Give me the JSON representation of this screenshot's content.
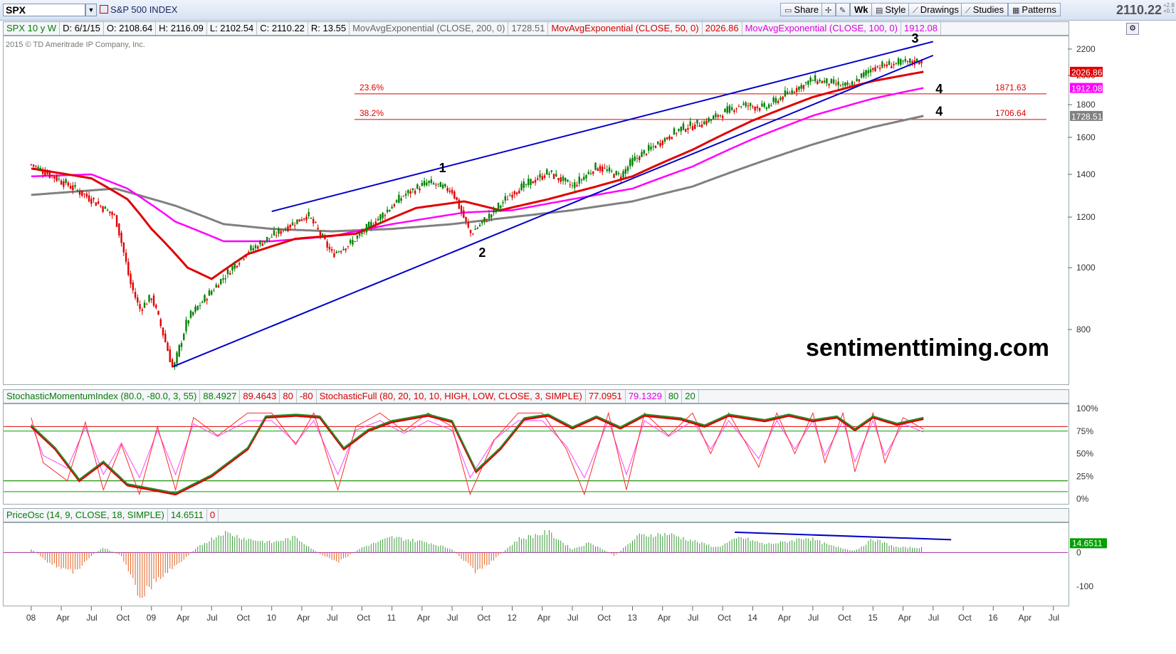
{
  "toolbar": {
    "symbol": "SPX",
    "symbol_name": "S&P 500 INDEX",
    "buttons": [
      "Share",
      "Wk",
      "Style",
      "Drawings",
      "Studies",
      "Patterns"
    ],
    "last_price": "2110.22",
    "change_top": "+2.8",
    "change_bottom": "+0.1"
  },
  "price_info": {
    "title": "SPX 10 y W",
    "date": "D: 6/1/15",
    "open": "O: 2108.64",
    "high": "H: 2116.09",
    "low": "L: 2102.54",
    "close": "C: 2110.22",
    "range": "R: 13.55",
    "ema200_label": "MovAvgExponential (CLOSE, 200, 0)",
    "ema200_value": "1728.51",
    "ema50_label": "MovAvgExponential (CLOSE, 50, 0)",
    "ema50_value": "2026.86",
    "ema100_label": "MovAvgExponential (CLOSE, 100, 0)",
    "ema100_value": "1912.08"
  },
  "copyright": "2015 © TD Ameritrade IP Company, Inc.",
  "watermark": "sentimenttiming.com",
  "stoch_info": {
    "smi_label": "StochasticMomentumIndex (80.0, -80.0, 3, 55)",
    "smi_value": "88.4927",
    "smi_avg": "89.4643",
    "smi_ob": "80",
    "smi_os": "-80",
    "sf_label": "StochasticFull (80, 20, 10, 10, HIGH, LOW, CLOSE, 3, SIMPLE)",
    "sf_k": "77.0951",
    "sf_d": "79.1329",
    "sf_ob": "80",
    "sf_os": "20"
  },
  "osc_info": {
    "label": "PriceOsc (14, 9, CLOSE, 18, SIMPLE)",
    "value": "14.6511",
    "zero": "0"
  },
  "colors": {
    "ema200": "#808080",
    "ema50": "#e00000",
    "ema100": "#ff00ff",
    "trendline": "#0000cc",
    "up": "#008000",
    "down": "#e00000"
  },
  "chart_data": [
    {
      "type": "candlestick",
      "scale": "log",
      "ylim": [
        660,
        2280
      ],
      "yticks": [
        "2200",
        "2000",
        "1800",
        "1600",
        "1400",
        "1200",
        "1000",
        "800"
      ],
      "x_labels": [
        "08",
        "Apr",
        "Jul",
        "Oct",
        "09",
        "Apr",
        "Jul",
        "Oct",
        "10",
        "Apr",
        "Jul",
        "Oct",
        "11",
        "Apr",
        "Jul",
        "Oct",
        "12",
        "Apr",
        "Jul",
        "Oct",
        "13",
        "Apr",
        "Jul",
        "Oct",
        "14",
        "Apr",
        "Jul",
        "Oct",
        "15",
        "Apr",
        "Jul",
        "Oct",
        "16",
        "Apr",
        "Jul"
      ],
      "price_path": [
        [
          2008.0,
          1450
        ],
        [
          2008.3,
          1350
        ],
        [
          2008.5,
          1280
        ],
        [
          2008.7,
          1200
        ],
        [
          2008.82,
          950
        ],
        [
          2008.9,
          860
        ],
        [
          2009.0,
          900
        ],
        [
          2009.18,
          690
        ],
        [
          2009.3,
          830
        ],
        [
          2009.5,
          920
        ],
        [
          2009.8,
          1060
        ],
        [
          2010.0,
          1120
        ],
        [
          2010.3,
          1210
        ],
        [
          2010.5,
          1050
        ],
        [
          2010.65,
          1090
        ],
        [
          2010.9,
          1200
        ],
        [
          2011.1,
          1300
        ],
        [
          2011.3,
          1360
        ],
        [
          2011.5,
          1320
        ],
        [
          2011.65,
          1130
        ],
        [
          2011.8,
          1200
        ],
        [
          2012.0,
          1310
        ],
        [
          2012.3,
          1410
        ],
        [
          2012.5,
          1340
        ],
        [
          2012.7,
          1440
        ],
        [
          2012.9,
          1390
        ],
        [
          2013.0,
          1470
        ],
        [
          2013.4,
          1650
        ],
        [
          2013.6,
          1690
        ],
        [
          2013.9,
          1800
        ],
        [
          2014.1,
          1780
        ],
        [
          2014.3,
          1880
        ],
        [
          2014.5,
          1970
        ],
        [
          2014.8,
          1920
        ],
        [
          2015.0,
          2060
        ],
        [
          2015.2,
          2090
        ],
        [
          2015.42,
          2110
        ]
      ],
      "ema200_path": [
        [
          2008.0,
          1300
        ],
        [
          2008.7,
          1330
        ],
        [
          2009.2,
          1250
        ],
        [
          2009.6,
          1170
        ],
        [
          2010.0,
          1150
        ],
        [
          2010.5,
          1140
        ],
        [
          2011.0,
          1150
        ],
        [
          2011.5,
          1170
        ],
        [
          2012.0,
          1200
        ],
        [
          2012.5,
          1230
        ],
        [
          2013.0,
          1270
        ],
        [
          2013.5,
          1340
        ],
        [
          2014.0,
          1450
        ],
        [
          2014.5,
          1560
        ],
        [
          2015.0,
          1660
        ],
        [
          2015.42,
          1728.51
        ]
      ],
      "ema50_path": [
        [
          2008.0,
          1430
        ],
        [
          2008.5,
          1380
        ],
        [
          2008.8,
          1280
        ],
        [
          2009.0,
          1150
        ],
        [
          2009.3,
          1000
        ],
        [
          2009.5,
          960
        ],
        [
          2009.8,
          1050
        ],
        [
          2010.2,
          1110
        ],
        [
          2010.7,
          1130
        ],
        [
          2011.2,
          1240
        ],
        [
          2011.6,
          1270
        ],
        [
          2011.9,
          1230
        ],
        [
          2012.3,
          1280
        ],
        [
          2012.7,
          1340
        ],
        [
          2013.0,
          1390
        ],
        [
          2013.5,
          1530
        ],
        [
          2014.0,
          1700
        ],
        [
          2014.5,
          1850
        ],
        [
          2015.0,
          1960
        ],
        [
          2015.42,
          2026.86
        ]
      ],
      "ema100_path": [
        [
          2008.0,
          1390
        ],
        [
          2008.5,
          1400
        ],
        [
          2008.8,
          1330
        ],
        [
          2009.2,
          1180
        ],
        [
          2009.6,
          1100
        ],
        [
          2010.0,
          1100
        ],
        [
          2010.5,
          1120
        ],
        [
          2011.0,
          1170
        ],
        [
          2011.6,
          1220
        ],
        [
          2012.0,
          1230
        ],
        [
          2012.5,
          1280
        ],
        [
          2013.0,
          1330
        ],
        [
          2013.5,
          1440
        ],
        [
          2014.0,
          1590
        ],
        [
          2014.5,
          1730
        ],
        [
          2015.0,
          1840
        ],
        [
          2015.42,
          1912.08
        ]
      ],
      "trendlines": [
        [
          [
            2010.0,
            1225
          ],
          [
            2015.5,
            2260
          ]
        ],
        [
          [
            2009.18,
            700
          ],
          [
            2015.5,
            2150
          ]
        ]
      ],
      "fib_levels": [
        {
          "label": "23.6%",
          "value": 1871.63,
          "value_label": "1871.63"
        },
        {
          "label": "38.2%",
          "value": 1706.64,
          "value_label": "1706.64"
        }
      ],
      "wave_labels": [
        {
          "text": "1",
          "x": 2011.42,
          "y": 1410
        },
        {
          "text": "2",
          "x": 2011.75,
          "y": 1040
        },
        {
          "text": "3",
          "x": 2015.35,
          "y": 2250
        },
        {
          "text": "4",
          "x": 2015.55,
          "y": 1875
        },
        {
          "text": "4",
          "x": 2015.55,
          "y": 1730
        }
      ],
      "price_tags": [
        {
          "value": 2026.86,
          "label": "2026.86",
          "color": "#e00000"
        },
        {
          "value": 1912.08,
          "label": "1912.08",
          "color": "#ff00ff"
        },
        {
          "value": 1728.51,
          "label": "1728.51",
          "color": "#808080"
        }
      ]
    },
    {
      "type": "line",
      "name": "StochasticMomentumIndex / StochasticFull",
      "ylim": [
        0,
        100
      ],
      "yticks": [
        "100%",
        "75%",
        "50%",
        "25%",
        "0%"
      ],
      "smi_path": [
        [
          2008.0,
          80
        ],
        [
          2008.2,
          55
        ],
        [
          2008.4,
          20
        ],
        [
          2008.6,
          40
        ],
        [
          2008.8,
          15
        ],
        [
          2009.0,
          10
        ],
        [
          2009.2,
          5
        ],
        [
          2009.5,
          25
        ],
        [
          2009.8,
          55
        ],
        [
          2009.95,
          90
        ],
        [
          2010.2,
          92
        ],
        [
          2010.4,
          90
        ],
        [
          2010.6,
          55
        ],
        [
          2010.8,
          75
        ],
        [
          2011.0,
          85
        ],
        [
          2011.3,
          92
        ],
        [
          2011.5,
          85
        ],
        [
          2011.7,
          30
        ],
        [
          2011.9,
          55
        ],
        [
          2012.1,
          88
        ],
        [
          2012.3,
          92
        ],
        [
          2012.5,
          78
        ],
        [
          2012.7,
          90
        ],
        [
          2012.9,
          78
        ],
        [
          2013.1,
          92
        ],
        [
          2013.4,
          88
        ],
        [
          2013.6,
          80
        ],
        [
          2013.8,
          92
        ],
        [
          2014.1,
          86
        ],
        [
          2014.3,
          92
        ],
        [
          2014.5,
          86
        ],
        [
          2014.7,
          90
        ],
        [
          2014.85,
          76
        ],
        [
          2015.0,
          90
        ],
        [
          2015.2,
          82
        ],
        [
          2015.42,
          88.49
        ]
      ],
      "sf_path": [
        [
          2008.0,
          90
        ],
        [
          2008.1,
          40
        ],
        [
          2008.3,
          20
        ],
        [
          2008.45,
          85
        ],
        [
          2008.6,
          10
        ],
        [
          2008.75,
          60
        ],
        [
          2008.9,
          5
        ],
        [
          2009.05,
          80
        ],
        [
          2009.2,
          10
        ],
        [
          2009.35,
          90
        ],
        [
          2009.55,
          70
        ],
        [
          2009.8,
          95
        ],
        [
          2010.0,
          95
        ],
        [
          2010.2,
          60
        ],
        [
          2010.35,
          95
        ],
        [
          2010.55,
          10
        ],
        [
          2010.7,
          80
        ],
        [
          2010.9,
          95
        ],
        [
          2011.1,
          75
        ],
        [
          2011.3,
          95
        ],
        [
          2011.5,
          80
        ],
        [
          2011.65,
          5
        ],
        [
          2011.85,
          65
        ],
        [
          2012.05,
          95
        ],
        [
          2012.25,
          95
        ],
        [
          2012.45,
          55
        ],
        [
          2012.6,
          5
        ],
        [
          2012.8,
          95
        ],
        [
          2012.95,
          10
        ],
        [
          2013.1,
          95
        ],
        [
          2013.3,
          70
        ],
        [
          2013.5,
          95
        ],
        [
          2013.65,
          50
        ],
        [
          2013.8,
          95
        ],
        [
          2013.95,
          60
        ],
        [
          2014.05,
          35
        ],
        [
          2014.2,
          95
        ],
        [
          2014.35,
          50
        ],
        [
          2014.5,
          95
        ],
        [
          2014.6,
          40
        ],
        [
          2014.75,
          95
        ],
        [
          2014.85,
          30
        ],
        [
          2015.0,
          95
        ],
        [
          2015.1,
          40
        ],
        [
          2015.25,
          90
        ],
        [
          2015.42,
          77.1
        ]
      ],
      "levels": [
        80,
        20
      ]
    },
    {
      "type": "bar",
      "name": "PriceOsc",
      "ylim": [
        -155,
        85
      ],
      "yticks": [
        "0",
        "-100"
      ],
      "osc_path": [
        [
          2008.0,
          10
        ],
        [
          2008.15,
          -30
        ],
        [
          2008.35,
          -60
        ],
        [
          2008.5,
          -10
        ],
        [
          2008.6,
          15
        ],
        [
          2008.75,
          -10
        ],
        [
          2008.9,
          -130
        ],
        [
          2009.05,
          -80
        ],
        [
          2009.2,
          -40
        ],
        [
          2009.4,
          20
        ],
        [
          2009.6,
          60
        ],
        [
          2009.8,
          40
        ],
        [
          2010.0,
          30
        ],
        [
          2010.2,
          45
        ],
        [
          2010.4,
          -5
        ],
        [
          2010.55,
          -30
        ],
        [
          2010.75,
          15
        ],
        [
          2011.0,
          45
        ],
        [
          2011.3,
          30
        ],
        [
          2011.5,
          10
        ],
        [
          2011.7,
          -60
        ],
        [
          2011.85,
          -20
        ],
        [
          2012.05,
          40
        ],
        [
          2012.3,
          60
        ],
        [
          2012.5,
          10
        ],
        [
          2012.65,
          30
        ],
        [
          2012.85,
          -10
        ],
        [
          2013.05,
          50
        ],
        [
          2013.3,
          55
        ],
        [
          2013.55,
          30
        ],
        [
          2013.7,
          15
        ],
        [
          2013.9,
          45
        ],
        [
          2014.1,
          25
        ],
        [
          2014.25,
          30
        ],
        [
          2014.45,
          45
        ],
        [
          2014.65,
          20
        ],
        [
          2014.85,
          5
        ],
        [
          2015.0,
          40
        ],
        [
          2015.2,
          15
        ],
        [
          2015.42,
          14.65
        ]
      ],
      "divergence_line": [
        [
          2013.85,
          60
        ],
        [
          2015.65,
          38
        ]
      ]
    }
  ]
}
